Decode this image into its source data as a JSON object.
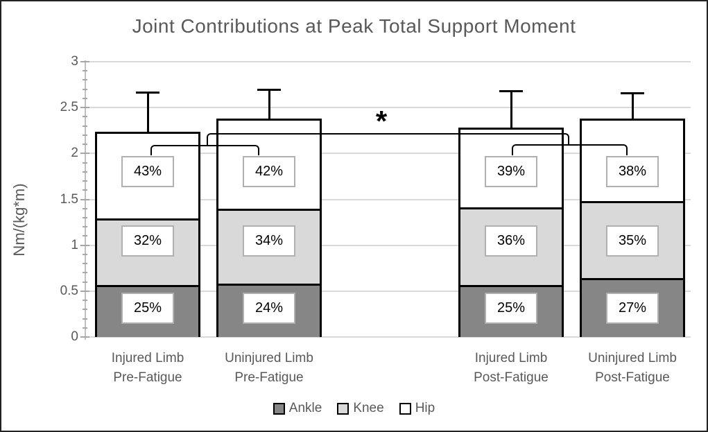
{
  "title": "Joint Contributions at Peak Total Support Moment",
  "chart_data": {
    "type": "bar",
    "stacked": true,
    "title": "Joint Contributions at Peak Total Support Moment",
    "xlabel": "",
    "ylabel": "Nm/(kg*m)",
    "ylim": [
      0,
      3
    ],
    "y_major_step": 0.5,
    "y_minor_step": 0.1,
    "y_tick_labels": [
      "0",
      "0.5",
      "1",
      "1.5",
      "2",
      "2.5",
      "3"
    ],
    "grid": true,
    "legend_position": "bottom",
    "categories": [
      [
        "Injured Limb",
        "Pre-Fatigue"
      ],
      [
        "Uninjured Limb",
        "Pre-Fatigue"
      ],
      [
        "Injured Limb",
        "Post-Fatigue"
      ],
      [
        "Uninjured Limb",
        "Post-Fatigue"
      ]
    ],
    "series": [
      {
        "name": "Ankle",
        "color": "#868686",
        "values": [
          0.57,
          0.58,
          0.57,
          0.64
        ],
        "percent_labels": [
          "25%",
          "24%",
          "25%",
          "27%"
        ]
      },
      {
        "name": "Knee",
        "color": "#d9d9d9",
        "values": [
          0.72,
          0.82,
          0.84,
          0.84
        ],
        "percent_labels": [
          "32%",
          "34%",
          "36%",
          "35%"
        ]
      },
      {
        "name": "Hip",
        "color": "#ffffff",
        "values": [
          0.95,
          0.98,
          0.87,
          0.9
        ],
        "percent_labels": [
          "43%",
          "42%",
          "39%",
          "38%"
        ]
      }
    ],
    "totals": [
      2.24,
      2.38,
      2.28,
      2.38
    ],
    "error_bar_tops": [
      2.67,
      2.7,
      2.68,
      2.66
    ],
    "significance": {
      "symbol": "*",
      "note": "outer bracket with asterisk joins the two hip-percentage comparison brackets (pre-fatigue pair vs post-fatigue pair)"
    }
  },
  "colors": {
    "axis_text": "#595959",
    "grid": "#d9d9d9",
    "tick": "#a6a6a6",
    "axis_line": "#c0c0c0",
    "bar_border": "#000000",
    "label_box_border": "#b0b0b0",
    "annotation": "#000000"
  }
}
